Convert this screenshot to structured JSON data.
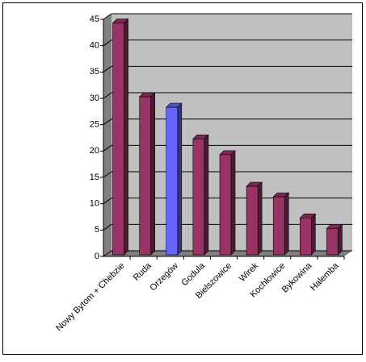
{
  "chart_data": {
    "type": "bar",
    "categories": [
      "Nowy Bytom + Chebzie",
      "Ruda",
      "Orzegów",
      "Godula",
      "Bielszowice",
      "Wirek",
      "Kochłowice",
      "Bykowina",
      "Halemba"
    ],
    "values": [
      44,
      30,
      28,
      22,
      19,
      13,
      11,
      7,
      5
    ],
    "colors": [
      "#993366",
      "#993366",
      "#6666ff",
      "#993366",
      "#993366",
      "#993366",
      "#993366",
      "#993366",
      "#993366"
    ],
    "ylim": [
      0,
      45
    ],
    "yticks": [
      0,
      5,
      10,
      15,
      20,
      25,
      30,
      35,
      40,
      45
    ],
    "grid": true
  }
}
